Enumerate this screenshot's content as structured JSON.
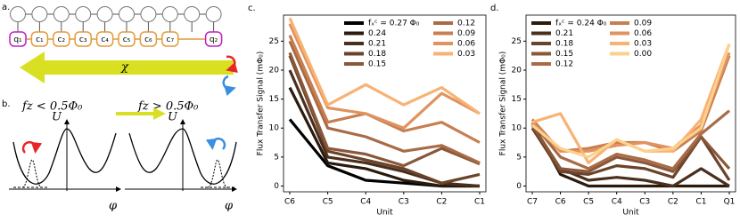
{
  "diagram": {
    "panel_a": "a.",
    "panel_b": "b.",
    "units": [
      "q₁",
      "c₁",
      "c₂",
      "c₃",
      "c₄",
      "c₅",
      "c₆",
      "c₇",
      "q₂"
    ],
    "chi": "χ",
    "cond_left": "fz < 0.5Φ₀",
    "cond_right": "fz > 0.5Φ₀",
    "u_left": "U",
    "u_right": "U",
    "phi_left": "φ",
    "phi_right": "φ"
  },
  "chart_data": [
    {
      "type": "line",
      "panel_label": "c.",
      "ylabel": "Flux Transfer Signal (mΦ₀)",
      "xlabel": "Unit",
      "categories": [
        "C6",
        "C5",
        "C4",
        "C3",
        "C2",
        "C1"
      ],
      "ylim": [
        -1,
        29.5
      ],
      "yticks": [
        0,
        5,
        10,
        15,
        20,
        25
      ],
      "series": [
        {
          "name": "fₓᶜ = 0.27 Φ₀",
          "color": "#000000",
          "values": [
            11.5,
            3.5,
            1,
            0.5,
            0,
            0
          ]
        },
        {
          "name": "0.24",
          "color": "#2b1a0e",
          "values": [
            17,
            4,
            3,
            1,
            0,
            0
          ]
        },
        {
          "name": "0.21",
          "color": "#4a2f1d",
          "values": [
            20,
            5,
            4,
            2.5,
            0.5,
            0
          ]
        },
        {
          "name": "0.18",
          "color": "#6a432b",
          "values": [
            22.5,
            6,
            4.5,
            3,
            0.5,
            2
          ]
        },
        {
          "name": "0.15",
          "color": "#8a5738",
          "values": [
            23,
            6.5,
            5.5,
            3.5,
            6.5,
            3.8
          ]
        },
        {
          "name": "0.12",
          "color": "#a86b45",
          "values": [
            25,
            10,
            8.5,
            6,
            7,
            4
          ]
        },
        {
          "name": "0.09",
          "color": "#c77f52",
          "values": [
            26,
            11,
            12.5,
            9.5,
            11,
            7.5
          ]
        },
        {
          "name": "0.06",
          "color": "#e0935f",
          "values": [
            28,
            13.5,
            12.5,
            10,
            16,
            12.5
          ]
        },
        {
          "name": "0.03",
          "color": "#f8b273",
          "values": [
            29,
            14,
            17.5,
            14,
            17,
            12.5
          ]
        }
      ]
    },
    {
      "type": "line",
      "panel_label": "d.",
      "ylabel": "Flux Transfer Signal (mΦ₀)",
      "xlabel": "Unit",
      "categories": [
        "C7",
        "C6",
        "C5",
        "C4",
        "C3",
        "C2",
        "C1",
        "Q1"
      ],
      "ylim": [
        -1,
        29.5
      ],
      "yticks": [
        0,
        5,
        10,
        15,
        20,
        25
      ],
      "series": [
        {
          "name": "fₓᶜ = 0.24 Φ₀",
          "color": "#2b1a0e",
          "values": [
            11,
            2,
            0,
            0,
            0,
            0,
            0,
            0
          ]
        },
        {
          "name": "0.21",
          "color": "#4a2f1d",
          "values": [
            10.5,
            3,
            1,
            1.5,
            1,
            0,
            3,
            0
          ]
        },
        {
          "name": "0.18",
          "color": "#6a432b",
          "values": [
            10,
            2.5,
            2,
            3.5,
            3,
            1.5,
            8.5,
            1
          ]
        },
        {
          "name": "0.15",
          "color": "#8a5738",
          "values": [
            10.5,
            3,
            2.5,
            5,
            4,
            2.5,
            8.5,
            3
          ]
        },
        {
          "name": "0.12",
          "color": "#a86b45",
          "values": [
            11,
            5,
            3,
            5.5,
            4.5,
            3,
            9,
            13
          ]
        },
        {
          "name": "0.09",
          "color": "#c77f52",
          "values": [
            11.5,
            6,
            6.5,
            7.5,
            7.5,
            6,
            9.5,
            22.5
          ]
        },
        {
          "name": "0.06",
          "color": "#e0935f",
          "values": [
            11,
            6,
            6,
            7,
            7.5,
            6.5,
            10.5,
            23
          ]
        },
        {
          "name": "0.03",
          "color": "#f8b273",
          "values": [
            11,
            12.5,
            4,
            8,
            6,
            6,
            11.5,
            24.5
          ]
        },
        {
          "name": "0.00",
          "color": "#fdd08c",
          "values": [
            10.5,
            6.5,
            5,
            8,
            6,
            6.5,
            10,
            24.5
          ]
        }
      ]
    }
  ]
}
